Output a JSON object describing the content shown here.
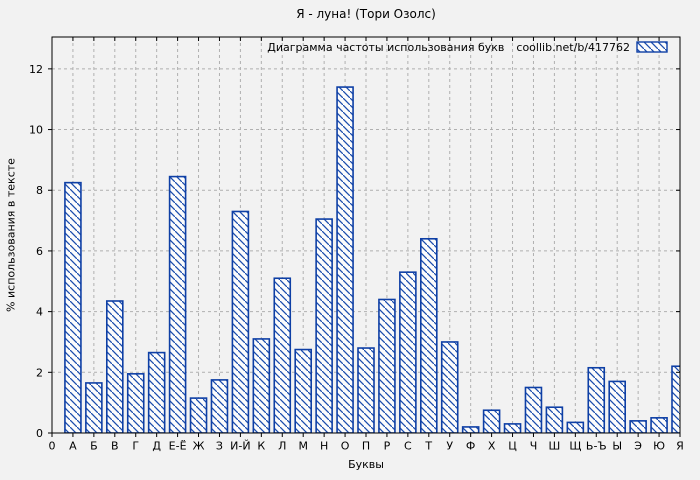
{
  "chart_data": {
    "type": "bar",
    "title": "Я - луна! (Тори Озолс)",
    "legend_label": "Диаграмма частоты использования букв",
    "legend_source": "coollib.net/b/417762",
    "legend_position": "top-right",
    "xlabel": "Буквы",
    "ylabel": "% использования в тексте",
    "origin_label": "0",
    "categories": [
      "А",
      "Б",
      "В",
      "Г",
      "Д",
      "Е-Ё",
      "Ж",
      "З",
      "И-Й",
      "К",
      "Л",
      "М",
      "Н",
      "О",
      "П",
      "Р",
      "С",
      "Т",
      "У",
      "Ф",
      "Х",
      "Ц",
      "Ч",
      "Ш",
      "Щ",
      "Ь-Ъ",
      "Ы",
      "Э",
      "Ю",
      "Я"
    ],
    "values": [
      8.25,
      1.65,
      4.35,
      1.95,
      2.65,
      8.45,
      1.15,
      1.75,
      7.3,
      3.1,
      5.1,
      2.75,
      7.05,
      11.4,
      2.8,
      4.4,
      5.3,
      6.4,
      3.0,
      0.2,
      0.75,
      0.3,
      1.5,
      0.85,
      0.35,
      2.15,
      1.7,
      0.4,
      0.5,
      2.2
    ],
    "yticks": [
      0,
      2,
      4,
      6,
      8,
      10,
      12
    ],
    "ylim": [
      0,
      13.05
    ],
    "grid": true,
    "hatch_style": "diagonal-backslash",
    "colors": {
      "background": "#f2f2f2",
      "bar_fill": "#fcfcfc",
      "bar_border": "#0e3fa5",
      "hatch": "#1b4dad",
      "grid": "#b0b0b0",
      "frame": "#000000",
      "text": "#000000"
    }
  }
}
